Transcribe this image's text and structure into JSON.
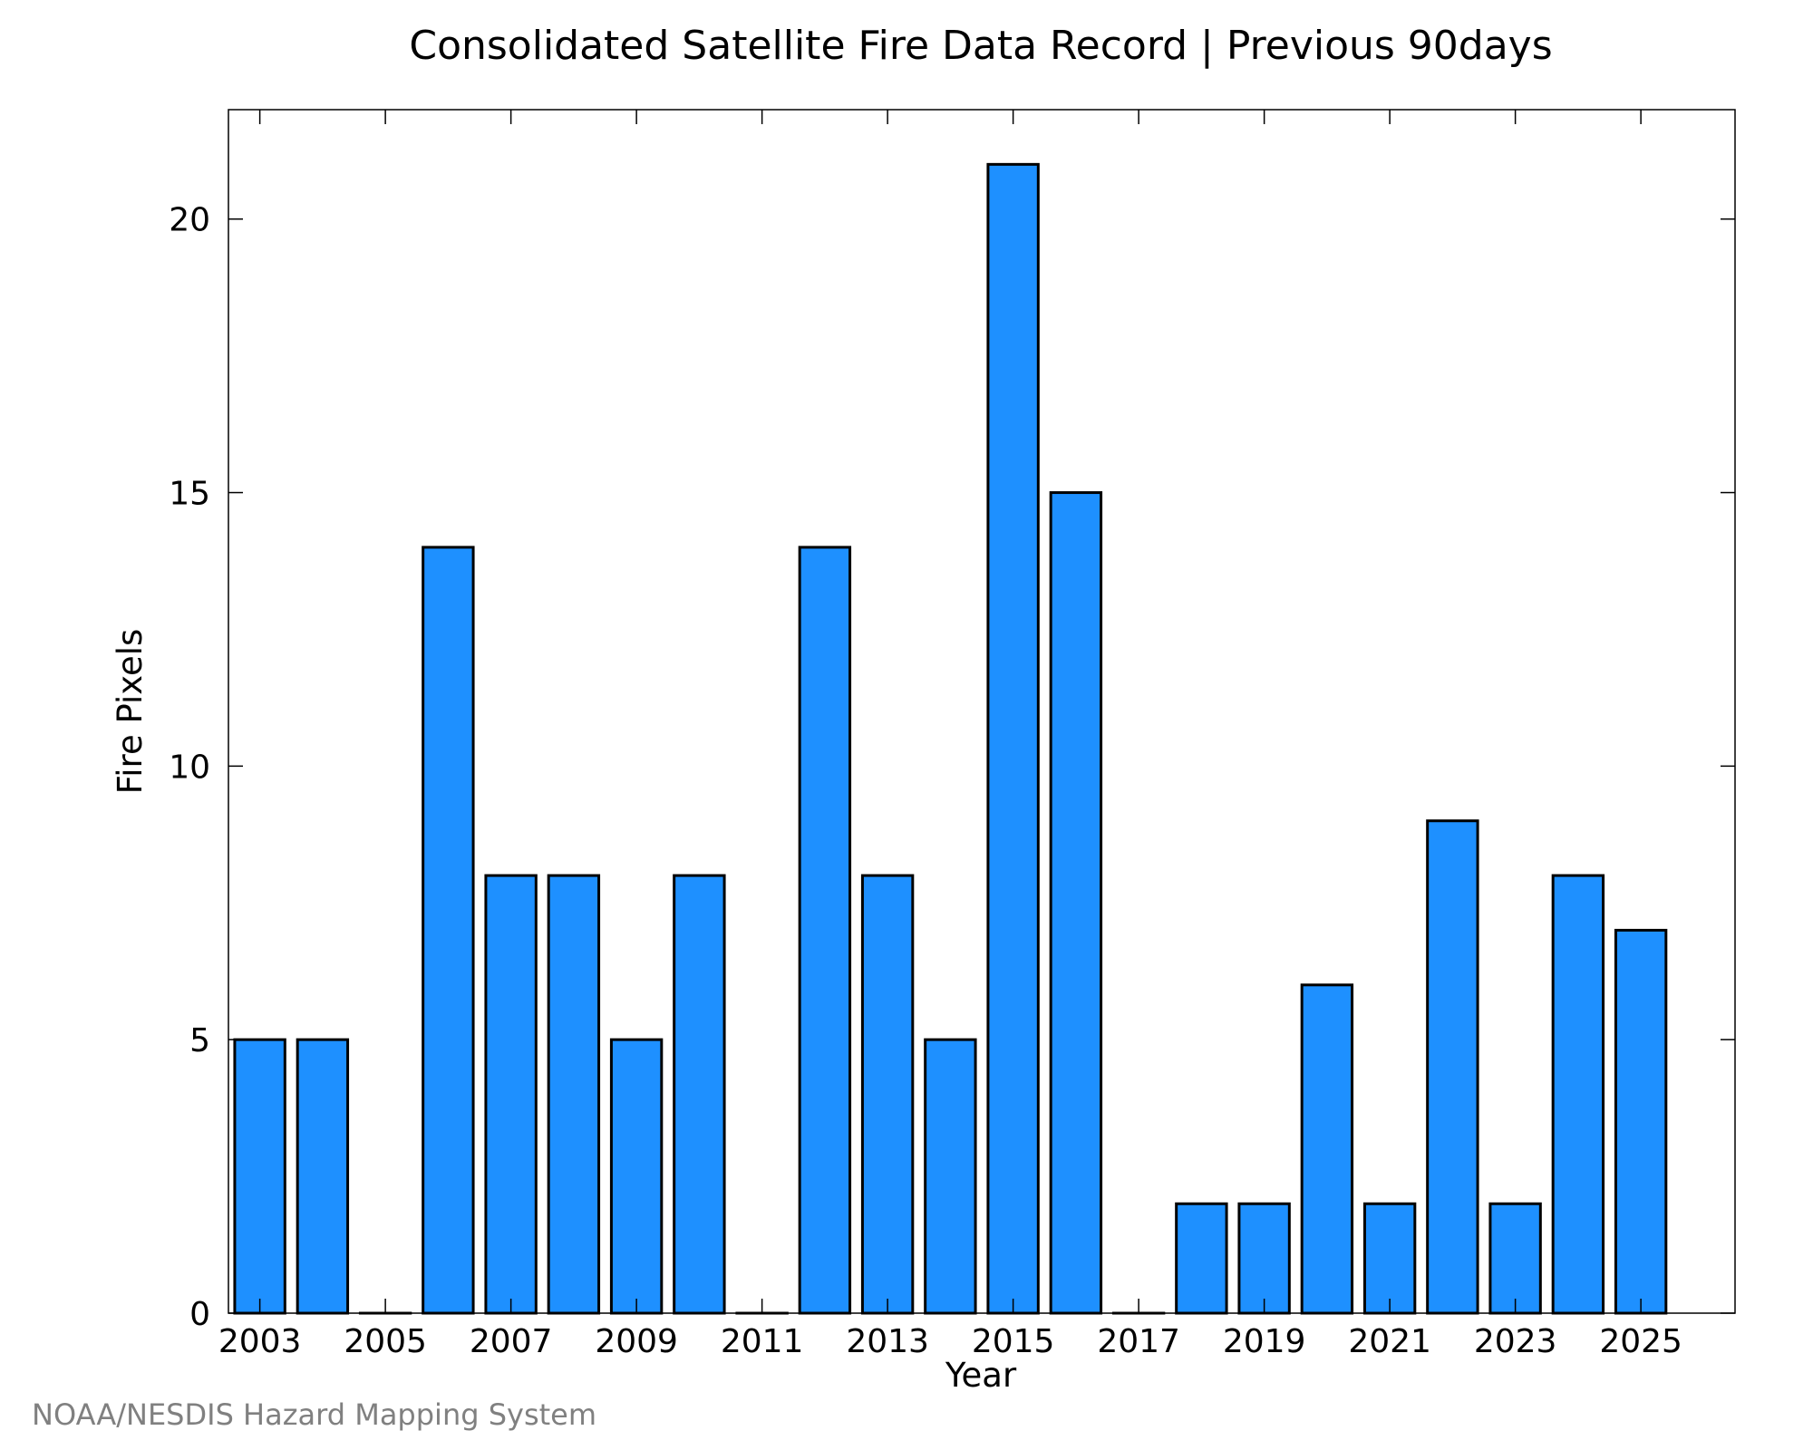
{
  "chart_data": {
    "type": "bar",
    "title": "Consolidated Satellite Fire Data Record | Previous 90days",
    "xlabel": "Year",
    "ylabel": "Fire Pixels",
    "categories": [
      "2003",
      "2004",
      "2005",
      "2006",
      "2007",
      "2008",
      "2009",
      "2010",
      "2011",
      "2012",
      "2013",
      "2014",
      "2015",
      "2016",
      "2017",
      "2018",
      "2019",
      "2020",
      "2021",
      "2022",
      "2023",
      "2024",
      "2025"
    ],
    "values": [
      5,
      5,
      0,
      14,
      8,
      8,
      5,
      8,
      0,
      14,
      8,
      5,
      21,
      15,
      0,
      2,
      2,
      6,
      2,
      9,
      2,
      8,
      7
    ],
    "x_ticks": [
      "2003",
      "2005",
      "2007",
      "2009",
      "2011",
      "2013",
      "2015",
      "2017",
      "2019",
      "2021",
      "2023",
      "2025"
    ],
    "y_ticks": [
      "0",
      "5",
      "10",
      "15",
      "20"
    ],
    "ylim": [
      0,
      22
    ],
    "bar_color": "#1e90ff",
    "grid": false,
    "legend": "none"
  },
  "credit": "NOAA/NESDIS Hazard Mapping System"
}
